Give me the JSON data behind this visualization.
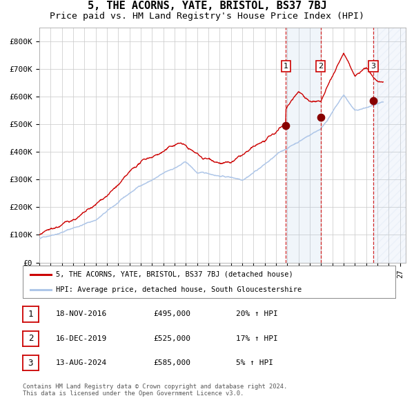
{
  "title": "5, THE ACORNS, YATE, BRISTOL, BS37 7BJ",
  "subtitle": "Price paid vs. HM Land Registry's House Price Index (HPI)",
  "xlim": [
    1995.0,
    2027.5
  ],
  "ylim": [
    0,
    850000
  ],
  "yticks": [
    0,
    100000,
    200000,
    300000,
    400000,
    500000,
    600000,
    700000,
    800000
  ],
  "ytick_labels": [
    "£0",
    "£100K",
    "£200K",
    "£300K",
    "£400K",
    "£500K",
    "£600K",
    "£700K",
    "£800K"
  ],
  "xticks": [
    1995,
    1996,
    1997,
    1998,
    1999,
    2000,
    2001,
    2002,
    2003,
    2004,
    2005,
    2006,
    2007,
    2008,
    2009,
    2010,
    2011,
    2012,
    2013,
    2014,
    2015,
    2016,
    2017,
    2018,
    2019,
    2020,
    2021,
    2022,
    2023,
    2024,
    2025,
    2026,
    2027
  ],
  "hpi_color": "#aec6e8",
  "price_color": "#cc0000",
  "grid_color": "#cccccc",
  "bg_color": "#ffffff",
  "sale_dates": [
    2016.88,
    2019.96,
    2024.62
  ],
  "sale_prices": [
    495000,
    525000,
    585000
  ],
  "sale_labels": [
    "1",
    "2",
    "3"
  ],
  "legend_price_label": "5, THE ACORNS, YATE, BRISTOL, BS37 7BJ (detached house)",
  "legend_hpi_label": "HPI: Average price, detached house, South Gloucestershire",
  "table_rows": [
    {
      "num": "1",
      "date": "18-NOV-2016",
      "price": "£495,000",
      "hpi": "20% ↑ HPI"
    },
    {
      "num": "2",
      "date": "16-DEC-2019",
      "price": "£525,000",
      "hpi": "17% ↑ HPI"
    },
    {
      "num": "3",
      "date": "13-AUG-2024",
      "price": "£585,000",
      "hpi": "5% ↑ HPI"
    }
  ],
  "footnote": "Contains HM Land Registry data © Crown copyright and database right 2024.\nThis data is licensed under the Open Government Licence v3.0.",
  "shaded_region": [
    2016.88,
    2019.96
  ],
  "hatch_region": [
    2024.62,
    2027.5
  ],
  "title_fontsize": 11,
  "subtitle_fontsize": 9.5
}
